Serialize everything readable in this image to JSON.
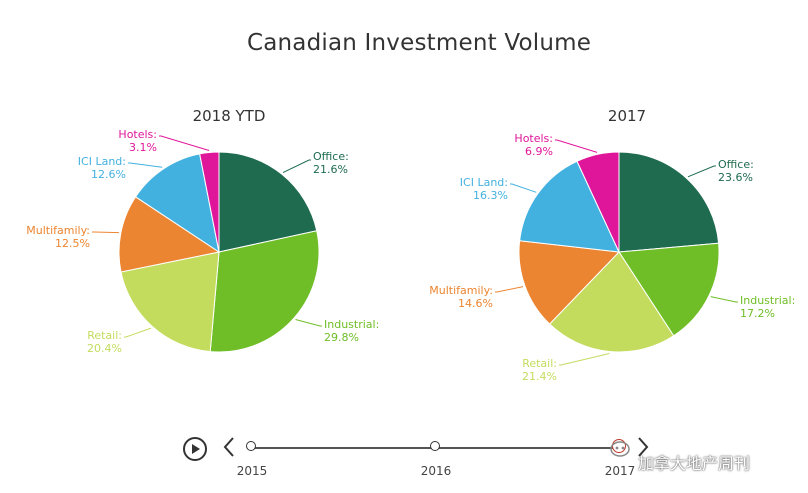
{
  "page": {
    "title": "Canadian Investment Volume"
  },
  "chart_data": [
    {
      "type": "pie",
      "title": "2018 YTD",
      "slices": [
        {
          "name": "Office",
          "value": 21.6,
          "label": "21.6%",
          "color": "#1e6b4f"
        },
        {
          "name": "Industrial",
          "value": 29.8,
          "label": "29.8%",
          "color": "#6fbe27"
        },
        {
          "name": "Retail",
          "value": 20.4,
          "label": "20.4%",
          "color": "#c3dc5e"
        },
        {
          "name": "Multifamily",
          "value": 12.5,
          "label": "12.5%",
          "color": "#ec8531"
        },
        {
          "name": "ICI Land",
          "value": 12.6,
          "label": "12.6%",
          "color": "#43b1df"
        },
        {
          "name": "Hotels",
          "value": 3.1,
          "label": "3.1%",
          "color": "#e0169a"
        }
      ]
    },
    {
      "type": "pie",
      "title": "2017",
      "slices": [
        {
          "name": "Office",
          "value": 23.6,
          "label": "23.6%",
          "color": "#1e6b4f"
        },
        {
          "name": "Industrial",
          "value": 17.2,
          "label": "17.2%",
          "color": "#6fbe27"
        },
        {
          "name": "Retail",
          "value": 21.4,
          "label": "21.4%",
          "color": "#c3dc5e"
        },
        {
          "name": "Multifamily",
          "value": 14.6,
          "label": "14.6%",
          "color": "#ec8531"
        },
        {
          "name": "ICI Land",
          "value": 16.3,
          "label": "16.3%",
          "color": "#43b1df"
        },
        {
          "name": "Hotels",
          "value": 6.9,
          "label": "6.9%",
          "color": "#e0169a"
        }
      ]
    }
  ],
  "timeline": {
    "years": [
      "2015",
      "2016",
      "2017"
    ],
    "active": "2017"
  },
  "watermark": "加拿大地产周刊",
  "icons": {
    "play": "play-icon",
    "prev": "chevron-left-icon",
    "next": "chevron-right-icon"
  }
}
